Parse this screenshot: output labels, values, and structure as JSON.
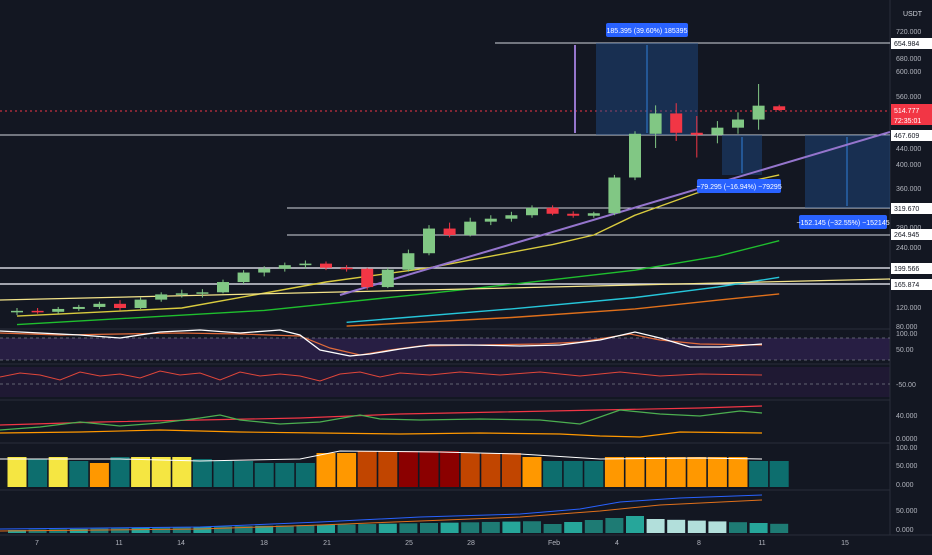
{
  "axis": {
    "currency": "USDT",
    "price_ticks": [
      "720.000",
      "680.000",
      "600.000",
      "560.000",
      "440.000",
      "400.000",
      "360.000",
      "280.000",
      "240.000",
      "120.000",
      "80.000"
    ],
    "date_ticks": [
      "7",
      "11",
      "14",
      "18",
      "21",
      "25",
      "28",
      "Feb",
      "4",
      "8",
      "11",
      "15"
    ],
    "rsi_ticks": [
      "100.00",
      "50.00"
    ],
    "cci_ticks": [
      "-50.00"
    ],
    "dmi_ticks": [
      "40.000",
      "0.0000"
    ],
    "stoch_ticks": [
      "100.00",
      "50.000",
      "0.000"
    ],
    "vol_ticks": [
      "50.000",
      "0.000"
    ]
  },
  "labels": {
    "price_current": "514.777",
    "countdown": "72:35:01",
    "lvl_654": "654.984",
    "lvl_467": "467.609",
    "lvl_319": "319.670",
    "lvl_264": "264.945",
    "lvl_199": "199.566",
    "lvl_165": "165.874"
  },
  "measurements": {
    "up": "185.395 (39.60%) 185395",
    "down1": "−79.295 (−16.94%) −79295",
    "down2": "−152.145 (−32.55%) −152145"
  },
  "chart_data": {
    "type": "candlestick",
    "ylim": [
      80,
      760
    ],
    "candles": [
      {
        "o": 112,
        "h": 120,
        "l": 105,
        "c": 114
      },
      {
        "o": 114,
        "h": 120,
        "l": 108,
        "c": 112
      },
      {
        "o": 112,
        "h": 122,
        "l": 108,
        "c": 118
      },
      {
        "o": 118,
        "h": 126,
        "l": 114,
        "c": 122
      },
      {
        "o": 122,
        "h": 132,
        "l": 118,
        "c": 128
      },
      {
        "o": 128,
        "h": 135,
        "l": 115,
        "c": 120
      },
      {
        "o": 120,
        "h": 140,
        "l": 118,
        "c": 136
      },
      {
        "o": 136,
        "h": 150,
        "l": 132,
        "c": 146
      },
      {
        "o": 146,
        "h": 155,
        "l": 140,
        "c": 148
      },
      {
        "o": 148,
        "h": 156,
        "l": 140,
        "c": 150
      },
      {
        "o": 150,
        "h": 175,
        "l": 148,
        "c": 170
      },
      {
        "o": 170,
        "h": 195,
        "l": 166,
        "c": 190
      },
      {
        "o": 190,
        "h": 203,
        "l": 182,
        "c": 198
      },
      {
        "o": 198,
        "h": 210,
        "l": 192,
        "c": 205
      },
      {
        "o": 205,
        "h": 214,
        "l": 198,
        "c": 208
      },
      {
        "o": 208,
        "h": 212,
        "l": 195,
        "c": 200
      },
      {
        "o": 200,
        "h": 205,
        "l": 192,
        "c": 198
      },
      {
        "o": 198,
        "h": 200,
        "l": 155,
        "c": 160
      },
      {
        "o": 160,
        "h": 200,
        "l": 158,
        "c": 196
      },
      {
        "o": 196,
        "h": 235,
        "l": 192,
        "c": 228
      },
      {
        "o": 228,
        "h": 285,
        "l": 224,
        "c": 278
      },
      {
        "o": 278,
        "h": 290,
        "l": 260,
        "c": 265
      },
      {
        "o": 265,
        "h": 300,
        "l": 262,
        "c": 292
      },
      {
        "o": 292,
        "h": 305,
        "l": 285,
        "c": 298
      },
      {
        "o": 298,
        "h": 312,
        "l": 292,
        "c": 305
      },
      {
        "o": 305,
        "h": 325,
        "l": 300,
        "c": 320
      },
      {
        "o": 320,
        "h": 325,
        "l": 305,
        "c": 308
      },
      {
        "o": 308,
        "h": 313,
        "l": 300,
        "c": 304
      },
      {
        "o": 304,
        "h": 312,
        "l": 300,
        "c": 309
      },
      {
        "o": 309,
        "h": 385,
        "l": 305,
        "c": 380
      },
      {
        "o": 380,
        "h": 475,
        "l": 375,
        "c": 470
      },
      {
        "o": 470,
        "h": 533,
        "l": 440,
        "c": 510
      },
      {
        "o": 510,
        "h": 540,
        "l": 455,
        "c": 472
      },
      {
        "o": 472,
        "h": 505,
        "l": 420,
        "c": 468
      },
      {
        "o": 468,
        "h": 495,
        "l": 450,
        "c": 482
      },
      {
        "o": 482,
        "h": 512,
        "l": 470,
        "c": 498
      },
      {
        "o": 498,
        "h": 580,
        "l": 478,
        "c": 532
      },
      {
        "o": 530,
        "h": 535,
        "l": 515,
        "c": 518
      }
    ],
    "moving_averages": [
      {
        "name": "yellow",
        "color": "#d9cb3f",
        "values": [
          {
            "i": 0,
            "v": 103
          },
          {
            "i": 8,
            "v": 120
          },
          {
            "i": 15,
            "v": 170
          },
          {
            "i": 20,
            "v": 200
          },
          {
            "i": 26,
            "v": 245
          },
          {
            "i": 28,
            "v": 265
          },
          {
            "i": 30,
            "v": 305
          },
          {
            "i": 33,
            "v": 350
          },
          {
            "i": 37,
            "v": 385
          }
        ]
      },
      {
        "name": "green",
        "color": "#1fbf2e",
        "values": [
          {
            "i": 0,
            "v": 85
          },
          {
            "i": 12,
            "v": 115
          },
          {
            "i": 20,
            "v": 148
          },
          {
            "i": 26,
            "v": 175
          },
          {
            "i": 30,
            "v": 195
          },
          {
            "i": 34,
            "v": 222
          },
          {
            "i": 37,
            "v": 253
          }
        ]
      },
      {
        "name": "cyan",
        "color": "#26c6da",
        "values": [
          {
            "i": 16,
            "v": 90
          },
          {
            "i": 24,
            "v": 118
          },
          {
            "i": 30,
            "v": 140
          },
          {
            "i": 34,
            "v": 160
          },
          {
            "i": 37,
            "v": 180
          }
        ]
      },
      {
        "name": "orange",
        "color": "#e0701b",
        "values": [
          {
            "i": 16,
            "v": 82
          },
          {
            "i": 24,
            "v": 100
          },
          {
            "i": 30,
            "v": 118
          },
          {
            "i": 34,
            "v": 135
          },
          {
            "i": 37,
            "v": 147
          }
        ]
      }
    ]
  }
}
